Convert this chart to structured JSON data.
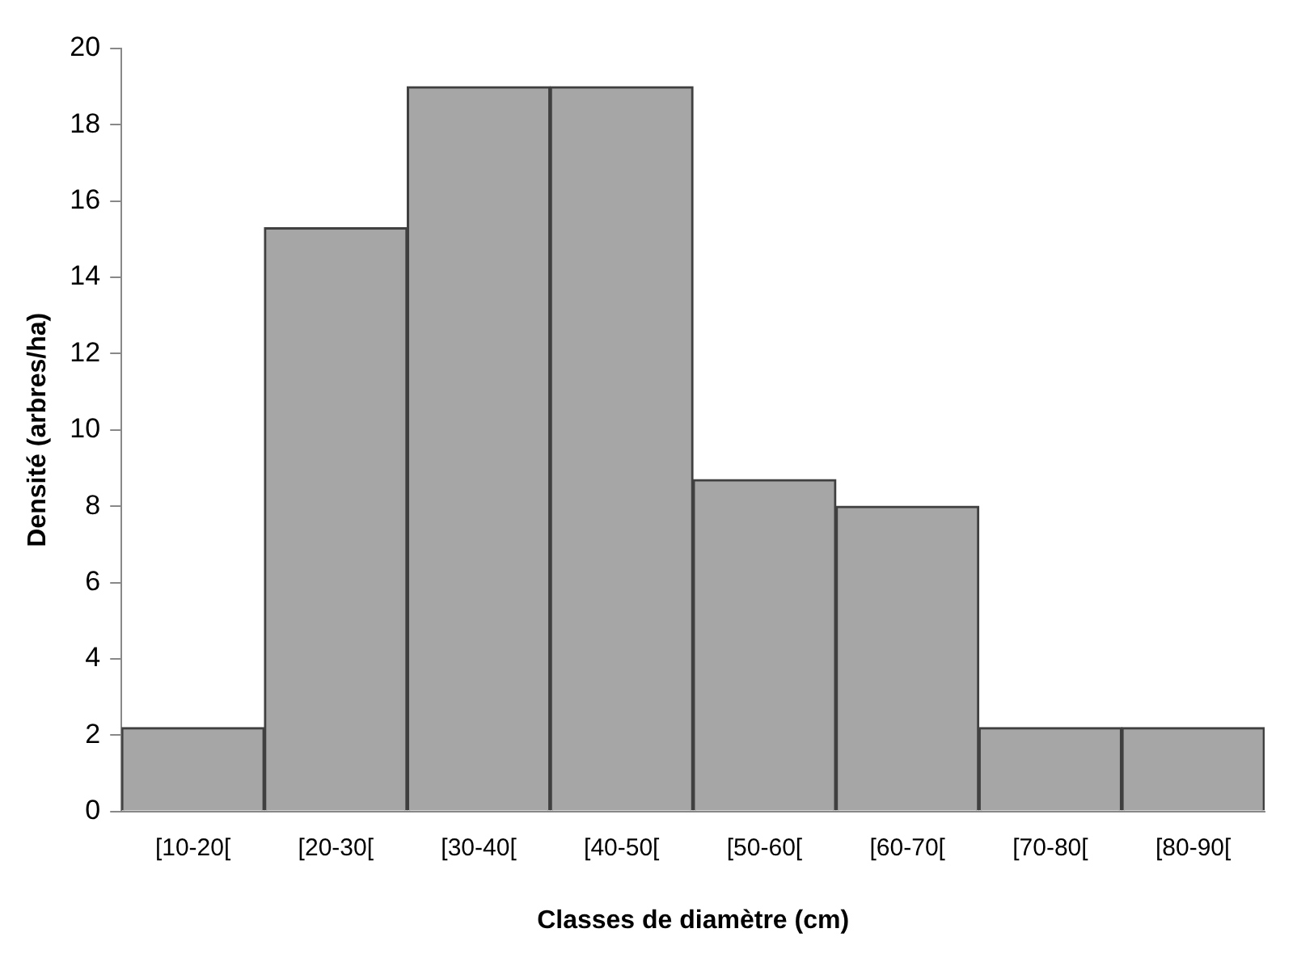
{
  "chart_data": {
    "type": "bar",
    "xlabel": "Classes de diamètre (cm)",
    "ylabel": "Densité (arbres/ha)",
    "categories": [
      "[10-20[",
      "[20-30[",
      "[30-40[",
      "[40-50[",
      "[50-60[",
      "[60-70[",
      "[70-80[",
      "[80-90["
    ],
    "values": [
      2.2,
      15.3,
      19,
      19,
      8.7,
      8,
      2.2,
      2.2
    ],
    "color": "#a6a6a6",
    "ylim": [
      0,
      20
    ],
    "yticks": [
      0,
      2,
      4,
      6,
      8,
      10,
      12,
      14,
      16,
      18,
      20
    ],
    "grid": false,
    "legend": false
  }
}
